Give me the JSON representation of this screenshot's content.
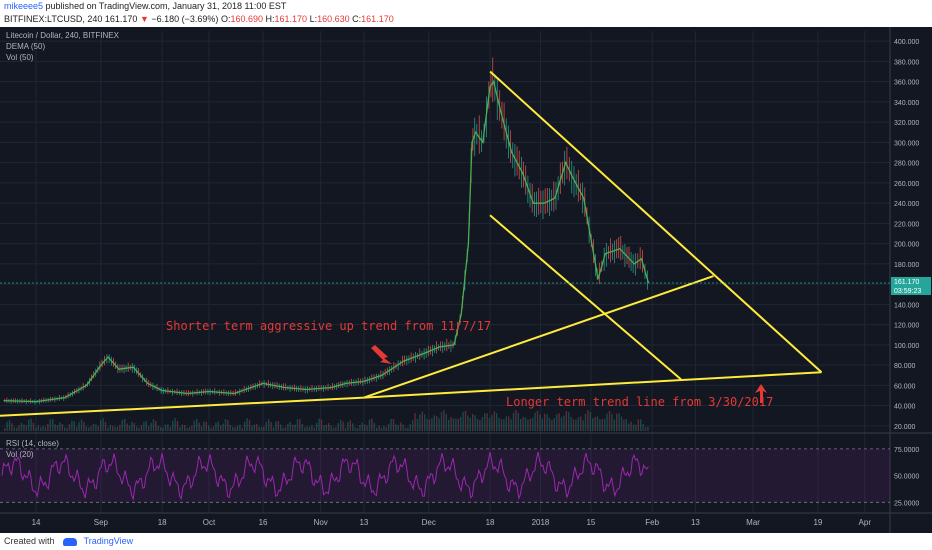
{
  "header": {
    "user": "mikeeee5",
    "published_text": "published on TradingView.com, January 31, 2018 11:00 EST",
    "symbol": "BITFINEX:LTCUSD, 240",
    "last": "161.170",
    "change_arrow": "▼",
    "change": "−6.180 (−3.69%)",
    "o_label": "O:",
    "o_value": "160.690",
    "h_label": "H:",
    "h_value": "161.170",
    "l_label": "L:",
    "l_value": "160.630",
    "c_label": "C:",
    "c_value": "161.170"
  },
  "legend": {
    "title": "Litecoin / Dollar, 240, BITFINEX",
    "dema": "DEMA (50)",
    "vol": "Vol (50)",
    "rsi": "RSI (14, close)",
    "rsi_vol": "Vol (20)"
  },
  "annotations": {
    "short_trend": "Shorter term aggressive up trend from 11/7/17",
    "long_trend": "Longer term trend line from 3/30/2017"
  },
  "price_tag": {
    "price": "161.170",
    "countdown": "03:59:23"
  },
  "footer": {
    "created_with": "Created with",
    "brand": "TradingView"
  },
  "colors": {
    "background": "#131722",
    "up_candle": "#26a69a",
    "down_candle": "#ef5350",
    "dema": "#4caf50",
    "trendlines": "#ffeb3b",
    "annotation_text": "#e53935",
    "rsi": "#9c27b0",
    "axis_text": "#b2b5be"
  },
  "chart_data": [
    {
      "type": "line",
      "title": "Litecoin / Dollar, 240, BITFINEX",
      "y_axis_ticks": [
        20,
        40,
        60,
        80,
        100,
        120,
        140,
        160,
        180,
        200,
        220,
        240,
        260,
        280,
        300,
        320,
        340,
        360,
        380,
        400
      ],
      "y_axis_tick_labels": [
        "20.000",
        "40.000",
        "60.000",
        "80.000",
        "100.000",
        "120.000",
        "140.000",
        "160.000",
        "180.000",
        "200.000",
        "220.000",
        "240.000",
        "260.000",
        "280.000",
        "300.000",
        "320.000",
        "340.000",
        "360.000",
        "380.000",
        "400.000"
      ],
      "ylim": [
        15,
        410
      ],
      "x_axis_tick_labels": [
        "14",
        "Sep",
        "18",
        "Oct",
        "16",
        "Nov",
        "13",
        "Dec",
        "18",
        "2018",
        "15",
        "Feb",
        "13",
        "Mar",
        "19",
        "Apr"
      ],
      "x_axis_tick_values": [
        "2017-08-14",
        "2017-09-01",
        "2017-09-18",
        "2017-10-01",
        "2017-10-16",
        "2017-11-01",
        "2017-11-13",
        "2017-12-01",
        "2017-12-18",
        "2018-01-01",
        "2018-01-15",
        "2018-02-01",
        "2018-02-13",
        "2018-03-01",
        "2018-03-19",
        "2018-04-01"
      ],
      "xlim": [
        "2017-08-04",
        "2018-04-08"
      ],
      "series": [
        {
          "values": [
            [
              "2017-08-05",
              45
            ],
            [
              "2017-08-14",
              44
            ],
            [
              "2017-08-22",
              48
            ],
            [
              "2017-08-28",
              60
            ],
            [
              "2017-09-01",
              80
            ],
            [
              "2017-09-03",
              88
            ],
            [
              "2017-09-06",
              76
            ],
            [
              "2017-09-10",
              78
            ],
            [
              "2017-09-14",
              62
            ],
            [
              "2017-09-18",
              55
            ],
            [
              "2017-09-25",
              52
            ],
            [
              "2017-10-01",
              54
            ],
            [
              "2017-10-08",
              52
            ],
            [
              "2017-10-16",
              62
            ],
            [
              "2017-10-22",
              58
            ],
            [
              "2017-10-28",
              56
            ],
            [
              "2017-11-04",
              58
            ],
            [
              "2017-11-08",
              62
            ],
            [
              "2017-11-13",
              64
            ],
            [
              "2017-11-18",
              70
            ],
            [
              "2017-11-24",
              84
            ],
            [
              "2017-11-30",
              92
            ],
            [
              "2017-12-04",
              98
            ],
            [
              "2017-12-08",
              100
            ],
            [
              "2017-12-10",
              130
            ],
            [
              "2017-12-12",
              200
            ],
            [
              "2017-12-13",
              300
            ],
            [
              "2017-12-14",
              310
            ],
            [
              "2017-12-16",
              300
            ],
            [
              "2017-12-18",
              355
            ],
            [
              "2017-12-19",
              360
            ],
            [
              "2017-12-21",
              330
            ],
            [
              "2017-12-24",
              290
            ],
            [
              "2017-12-27",
              270
            ],
            [
              "2017-12-30",
              240
            ],
            [
              "2018-01-02",
              240
            ],
            [
              "2018-01-05",
              245
            ],
            [
              "2018-01-08",
              280
            ],
            [
              "2018-01-10",
              265
            ],
            [
              "2018-01-13",
              245
            ],
            [
              "2018-01-16",
              185
            ],
            [
              "2018-01-17",
              165
            ],
            [
              "2018-01-19",
              190
            ],
            [
              "2018-01-23",
              195
            ],
            [
              "2018-01-27",
              180
            ],
            [
              "2018-01-29",
              185
            ],
            [
              "2018-01-31",
              161
            ]
          ]
        }
      ],
      "trendlines": [
        {
          "from": [
            "2017-08-04",
            30
          ],
          "to": [
            "2017-11-13",
            48
          ]
        },
        {
          "from": [
            "2017-11-13",
            48
          ],
          "to": [
            "2018-02-18",
            168
          ]
        },
        {
          "from": [
            "2017-11-13",
            48
          ],
          "to": [
            "2018-03-20",
            73
          ]
        },
        {
          "from": [
            "2017-12-18",
            370
          ],
          "to": [
            "2018-03-20",
            73
          ]
        },
        {
          "from": [
            "2017-12-18",
            228
          ],
          "to": [
            "2018-02-09",
            66
          ]
        }
      ]
    },
    {
      "type": "line",
      "title": "RSI (14, close)",
      "y_axis_tick_labels": [
        "75.0000",
        "50.0000",
        "25.0000"
      ],
      "y_axis_ticks": [
        75,
        50,
        25
      ],
      "ylim": [
        15,
        88
      ]
    }
  ]
}
